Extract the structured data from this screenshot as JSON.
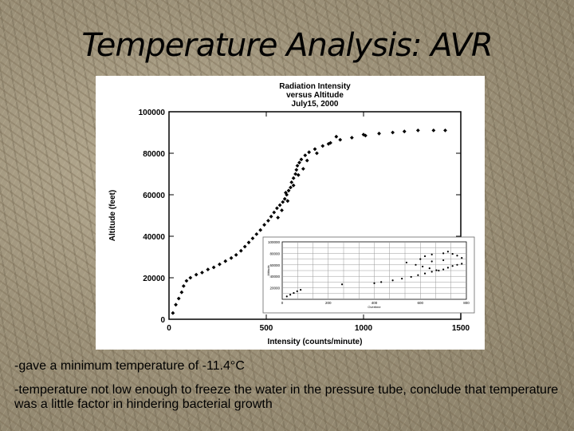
{
  "slide": {
    "title": "Temperature Analysis: AVR",
    "bullets": [
      "-gave a minimum temperature of -11.4°C",
      "-temperature not low enough to freeze the water in the pressure tube, conclude that temperature was a little factor in hindering bacterial growth"
    ]
  },
  "chart_data": [
    {
      "type": "scatter",
      "title": "Radiation Intensity\nversus Altitude\nJuly15, 2000",
      "xlabel": "Intensity (counts/minute)",
      "ylabel": "Altitude (feet)",
      "xlim": [
        0,
        1500
      ],
      "ylim": [
        0,
        100000
      ],
      "xticks": [
        0,
        500,
        1000,
        1500
      ],
      "yticks": [
        0,
        20000,
        40000,
        60000,
        80000,
        100000
      ],
      "grid": false,
      "series": [
        {
          "values": [
            [
              20,
              3000
            ],
            [
              35,
              7000
            ],
            [
              50,
              10000
            ],
            [
              65,
              13000
            ],
            [
              75,
              16000
            ],
            [
              90,
              18500
            ],
            [
              110,
              20000
            ],
            [
              140,
              21500
            ],
            [
              170,
              22500
            ],
            [
              200,
              24000
            ],
            [
              230,
              25000
            ],
            [
              260,
              26500
            ],
            [
              290,
              28000
            ],
            [
              320,
              29500
            ],
            [
              345,
              31000
            ],
            [
              370,
              33000
            ],
            [
              390,
              35000
            ],
            [
              410,
              37000
            ],
            [
              430,
              39000
            ],
            [
              450,
              41000
            ],
            [
              470,
              43000
            ],
            [
              490,
              45500
            ],
            [
              510,
              47500
            ],
            [
              525,
              49500
            ],
            [
              540,
              51500
            ],
            [
              555,
              53500
            ],
            [
              570,
              55000
            ],
            [
              585,
              56500
            ],
            [
              595,
              58000
            ],
            [
              605,
              60000
            ],
            [
              615,
              62000
            ],
            [
              625,
              63500
            ],
            [
              630,
              66000
            ],
            [
              640,
              68000
            ],
            [
              650,
              70000
            ],
            [
              655,
              72000
            ],
            [
              660,
              74000
            ],
            [
              670,
              75500
            ],
            [
              680,
              77000
            ],
            [
              700,
              79000
            ],
            [
              720,
              80500
            ],
            [
              750,
              82000
            ],
            [
              790,
              83500
            ],
            [
              830,
              85000
            ],
            [
              880,
              86500
            ],
            [
              940,
              87500
            ],
            [
              1010,
              88500
            ],
            [
              1080,
              89500
            ],
            [
              1150,
              90000
            ],
            [
              1210,
              90500
            ],
            [
              1280,
              91000
            ],
            [
              1360,
              91000
            ],
            [
              1420,
              91000
            ],
            [
              560,
              49000
            ],
            [
              580,
              52500
            ],
            [
              610,
              57000
            ],
            [
              600,
              61000
            ],
            [
              640,
              64500
            ],
            [
              665,
              69500
            ],
            [
              690,
              72500
            ],
            [
              710,
              76500
            ],
            [
              760,
              80000
            ],
            [
              820,
              84500
            ],
            [
              860,
              88000
            ],
            [
              1000,
              89000
            ]
          ]
        }
      ]
    },
    {
      "type": "scatter",
      "title": "",
      "xlabel": "Overtime",
      "ylabel": "Altitude",
      "xlim": [
        0,
        800
      ],
      "ylim": [
        0,
        100000
      ],
      "xticks": [
        0,
        200,
        400,
        600,
        800
      ],
      "yticks": [
        20000,
        40000,
        60000,
        80000,
        100000
      ],
      "grid": true,
      "series": [
        {
          "values": [
            [
              20,
              5000
            ],
            [
              35,
              8000
            ],
            [
              50,
              11000
            ],
            [
              65,
              14000
            ],
            [
              80,
              16500
            ],
            [
              260,
              26000
            ],
            [
              400,
              28000
            ],
            [
              430,
              30000
            ],
            [
              480,
              33000
            ],
            [
              520,
              36000
            ],
            [
              560,
              39000
            ],
            [
              590,
              42000
            ],
            [
              620,
              45000
            ],
            [
              650,
              48000
            ],
            [
              680,
              50000
            ],
            [
              700,
              52000
            ],
            [
              720,
              55000
            ],
            [
              740,
              58000
            ],
            [
              760,
              60000
            ],
            [
              780,
              62000
            ],
            [
              600,
              70000
            ],
            [
              620,
              75000
            ],
            [
              650,
              78000
            ],
            [
              700,
              80000
            ],
            [
              720,
              83000
            ],
            [
              740,
              79000
            ],
            [
              760,
              76000
            ],
            [
              780,
              72000
            ],
            [
              700,
              68000
            ],
            [
              650,
              66000
            ],
            [
              540,
              64000
            ],
            [
              580,
              60000
            ],
            [
              610,
              57000
            ],
            [
              640,
              54000
            ],
            [
              670,
              50500
            ]
          ]
        }
      ]
    }
  ]
}
